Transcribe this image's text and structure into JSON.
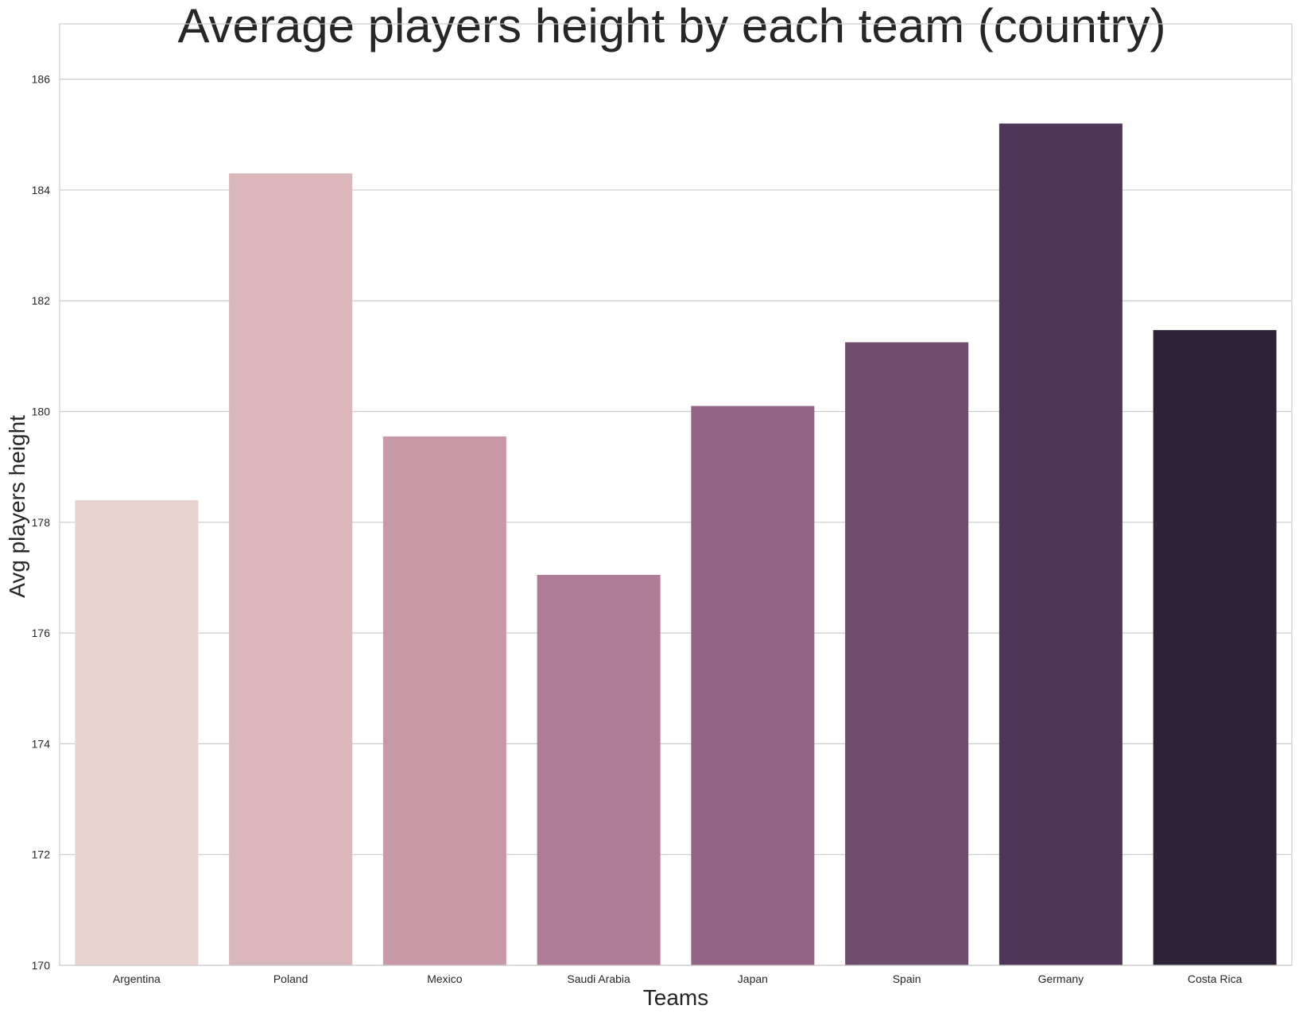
{
  "chart_data": {
    "type": "bar",
    "title": "Average players height by each team (country)",
    "xlabel": "Teams",
    "ylabel": "Avg players height",
    "categories": [
      "Argentina",
      "Poland",
      "Mexico",
      "Saudi Arabia",
      "Japan",
      "Spain",
      "Germany",
      "Costa Rica"
    ],
    "values": [
      178.4,
      184.3,
      179.55,
      177.05,
      180.1,
      181.25,
      185.2,
      181.47
    ],
    "colors": [
      "#e9d3ce",
      "#dbb6bb",
      "#c898a7",
      "#af7c98",
      "#936486",
      "#704c6f",
      "#4f3659",
      "#2e2239"
    ],
    "ylim": [
      170,
      187
    ],
    "yticks": [
      170,
      172,
      174,
      176,
      178,
      180,
      182,
      184,
      186
    ],
    "grid": "horizontal",
    "legend": "none"
  }
}
